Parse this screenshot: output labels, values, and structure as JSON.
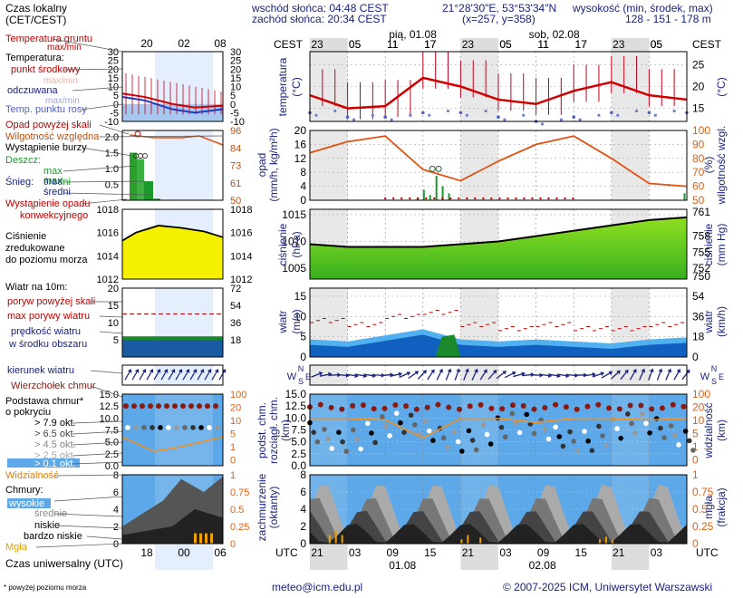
{
  "header": {
    "tz_local": "Czas lokalny",
    "tz_local2": "(CET/CEST)",
    "sunrise": "wschód słońca: 04:48 CEST",
    "sunset": "zachód słońca: 20:34 CEST",
    "coords": "21°28'30\"E, 53°53'34\"N",
    "grid": "(x=257, y=358)",
    "elev_label": "wysokość (min, środek, max)",
    "elev_values": "128 - 151 - 178 m"
  },
  "top_axis": {
    "left_label": "CEST",
    "right_label": "CEST",
    "hours": [
      "23",
      "05",
      "11",
      "17",
      "23",
      "05",
      "11",
      "17",
      "23",
      "05"
    ],
    "day1": "pią, 01.08",
    "day2": "sob, 02.08"
  },
  "bottom_axis": {
    "left_label": "UTC",
    "right_label": "UTC",
    "hours": [
      "21",
      "03",
      "09",
      "15",
      "21",
      "03",
      "09",
      "15",
      "21",
      "03"
    ],
    "day1": "01.08",
    "day2": "02.08"
  },
  "legend": {
    "mini_top_hours": [
      "20",
      "02",
      "08"
    ],
    "mini_bottom_hours": [
      "18",
      "00",
      "06"
    ],
    "utc_label": "Czas uniwersalny (UTC)",
    "temp_ground": "Temperatura gruntu",
    "temp_maxmin": "max/min",
    "temp_label": "Temperatura:",
    "temp_mid": "punkt środkowy",
    "temp_max_min2": "max/min",
    "temp_feel": "odczuwana",
    "temp_feel_maxmin": "max/min",
    "temp_dew": "Temp. punktu rosy",
    "precip_over": "Opad powyżej skali",
    "humidity": "Wilgotność względna",
    "storm": "Wystąpienie burzy",
    "rain": "Deszcz:",
    "rain_max": "max",
    "rain_mean": "średni",
    "snow": "Śnieg:",
    "snow_max": "max",
    "snow_mean": "średni",
    "conv": "Wystąpienie opadu",
    "conv2": "konwekcyjnego",
    "pressure1": "Ciśnienie",
    "pressure2": "zredukowane",
    "pressure3": "do poziomu morza",
    "wind_title": "Wiatr na 10m:",
    "gust_over": "poryw powyżej skali",
    "gust_max": "max porywy wiatru",
    "wind_speed1": "prędkość wiatru",
    "wind_speed2": "w środku obszaru",
    "wind_dir": "kierunek wiatru",
    "cloud_top": "Wierzchołek chmur",
    "cloud_base1": "Podstawa chmur*",
    "cloud_base2": "o pokryciu",
    "okt": [
      "> 7.9 okt.",
      "> 6.5 okt.",
      "> 4.5 okt.",
      "> 2.5 okt.",
      "> 0.1 okt."
    ],
    "visibility": "Widzialność",
    "clouds": "Chmury:",
    "cl_high": "wysokie",
    "cl_mid": "średnie",
    "cl_low": "niskie",
    "cl_vlow": "bardzo niskie",
    "fog": "Mgła",
    "footnote": "* powyżej poziomu morza"
  },
  "panels": {
    "temp": {
      "left": "temperatura",
      "left2": "(°C)",
      "right": "(°C)",
      "ticks": [
        "15",
        "20",
        "25"
      ],
      "mini_left": [
        "-10",
        "-5",
        "0",
        "5",
        "10",
        "15",
        "20",
        "25",
        "30"
      ],
      "mini_right": [
        "-10",
        "-5",
        "0",
        "5",
        "10",
        "15",
        "20",
        "25",
        "30"
      ]
    },
    "precip": {
      "left": "opad",
      "left2": "(mm/h, kg/m²h)",
      "right": "wilgotność wzgl.",
      "right2": "(%)",
      "left_ticks": [
        "0",
        "2",
        "4",
        "6",
        "8",
        "10",
        "12",
        "14",
        "16",
        "18",
        "20"
      ],
      "right_ticks": [
        "50",
        "60",
        "70",
        "80",
        "90",
        "100"
      ],
      "mini_left": [
        "0.5",
        "1.0",
        "1.5",
        "2.0"
      ],
      "mini_right": [
        "50",
        "61",
        "73",
        "84",
        "96"
      ]
    },
    "pressure": {
      "left": "ciśnienie",
      "left2": "(hPa)",
      "right": "ciśnienie",
      "right2": "(mm Hg)",
      "left_ticks": [
        "1005",
        "1010",
        "1015"
      ],
      "right_ticks": [
        "750",
        "752",
        "755",
        "758",
        "761"
      ],
      "mini_left": [
        "1012",
        "1014",
        "1016",
        "1018"
      ],
      "mini_right": [
        "1012",
        "1014",
        "1016",
        "1018"
      ]
    },
    "wind": {
      "left": "wiatr",
      "left2": "(m/s)",
      "right": "wiatr",
      "right2": "(km/h)",
      "left_ticks": [
        "0",
        "5",
        "10",
        "15"
      ],
      "right_ticks": [
        "0",
        "18",
        "36",
        "54"
      ],
      "mini_left": [
        "5",
        "10",
        "15",
        "20"
      ],
      "mini_right": [
        "18",
        "36",
        "54",
        "72"
      ]
    },
    "dir": {
      "compass": "WSNE"
    },
    "cloudbase": {
      "left": "podst. chm.",
      "left2": "rozciągł. chm.",
      "left3": "(km)",
      "right": "widzialność",
      "right2": "(km)",
      "left_ticks": [
        "0.0",
        "2.5",
        "5.0",
        "7.5",
        "10.0",
        "12.5",
        "15.0"
      ],
      "right_ticks": [
        "0",
        "1",
        "5",
        "10",
        "20",
        "100"
      ],
      "mini_left": [
        "0.0",
        "2.5",
        "5.0",
        "7.5",
        "10.0",
        "12.5",
        "15.0"
      ],
      "mini_right": [
        "0",
        "1",
        "5",
        "10",
        "20",
        "100"
      ]
    },
    "cloudcover": {
      "left": "zachmurzenie",
      "left2": "(oktanty)",
      "right": "mgła",
      "right2": "(frakcja)",
      "left_ticks": [
        "0",
        "2",
        "4",
        "6",
        "8"
      ],
      "right_ticks": [
        "0",
        "0.25",
        "0.5",
        "0.75",
        "1"
      ],
      "mini_left": [
        "0",
        "2",
        "4",
        "6",
        "8"
      ],
      "mini_right": [
        "0",
        "0.25",
        "0.5",
        "0.75",
        "1"
      ]
    }
  },
  "footer": {
    "email": "meteo@icm.edu.pl",
    "copyright": "© 2007-2025 ICM, Uniwersytet Warszawski"
  },
  "colors": {
    "navy": "#1a237e",
    "red": "#d00000",
    "orange": "#e06010",
    "green": "#3cb043",
    "yellow": "#f4f000",
    "bg": "#c8dcf4",
    "cloudbg": "#5da8e8"
  },
  "chart_data": [
    {
      "type": "line",
      "name": "temperature",
      "x": [
        0,
        6,
        12,
        18,
        24,
        30,
        36,
        42,
        48,
        54,
        60
      ],
      "series": [
        {
          "name": "punkt środkowy",
          "values": [
            18,
            15,
            15.5,
            22,
            20,
            17,
            16,
            19,
            21,
            18,
            17
          ]
        },
        {
          "name": "Temp. punktu rosy",
          "values": [
            14,
            13,
            13,
            14,
            14,
            13,
            12,
            13,
            14,
            14,
            14
          ]
        }
      ],
      "ylim": [
        12,
        28
      ]
    },
    {
      "type": "line",
      "name": "humidity",
      "x": [
        0,
        6,
        12,
        18,
        24,
        30,
        36,
        42,
        48,
        54,
        60
      ],
      "series": [
        {
          "name": "Wilgotność względna",
          "values": [
            84,
            92,
            96,
            72,
            64,
            78,
            90,
            96,
            80,
            62,
            60
          ]
        }
      ],
      "ylim": [
        50,
        100
      ]
    },
    {
      "type": "area",
      "name": "pressure",
      "x": [
        0,
        6,
        12,
        18,
        24,
        30,
        36,
        42,
        48,
        54,
        60
      ],
      "series": [
        {
          "name": "Ciśnienie",
          "values": [
            1009.5,
            1009,
            1009,
            1009,
            1009.5,
            1010,
            1011,
            1012,
            1013,
            1014,
            1014.5
          ]
        }
      ],
      "ylim": [
        1003,
        1016
      ]
    },
    {
      "type": "area",
      "name": "wind",
      "x": [
        0,
        6,
        12,
        18,
        24,
        30,
        36,
        42,
        48,
        54,
        60
      ],
      "series": [
        {
          "name": "prędkość wiatru",
          "values": [
            3,
            2.5,
            4,
            5.5,
            3,
            2.5,
            3,
            2.5,
            2,
            3,
            3.5
          ]
        },
        {
          "name": "max porywy wiatru",
          "values": [
            9,
            8,
            10,
            11,
            8,
            7,
            8,
            7,
            7,
            8,
            10
          ]
        }
      ],
      "ylim": [
        0,
        17
      ]
    },
    {
      "type": "line",
      "name": "visibility",
      "x": [
        0,
        6,
        12,
        18,
        24,
        30,
        36,
        42,
        48,
        54,
        60
      ],
      "series": [
        {
          "name": "Widzialność",
          "values": [
            20,
            20,
            18,
            5,
            20,
            20,
            15,
            20,
            20,
            18,
            20
          ]
        }
      ],
      "ylim": [
        0,
        100
      ]
    }
  ]
}
